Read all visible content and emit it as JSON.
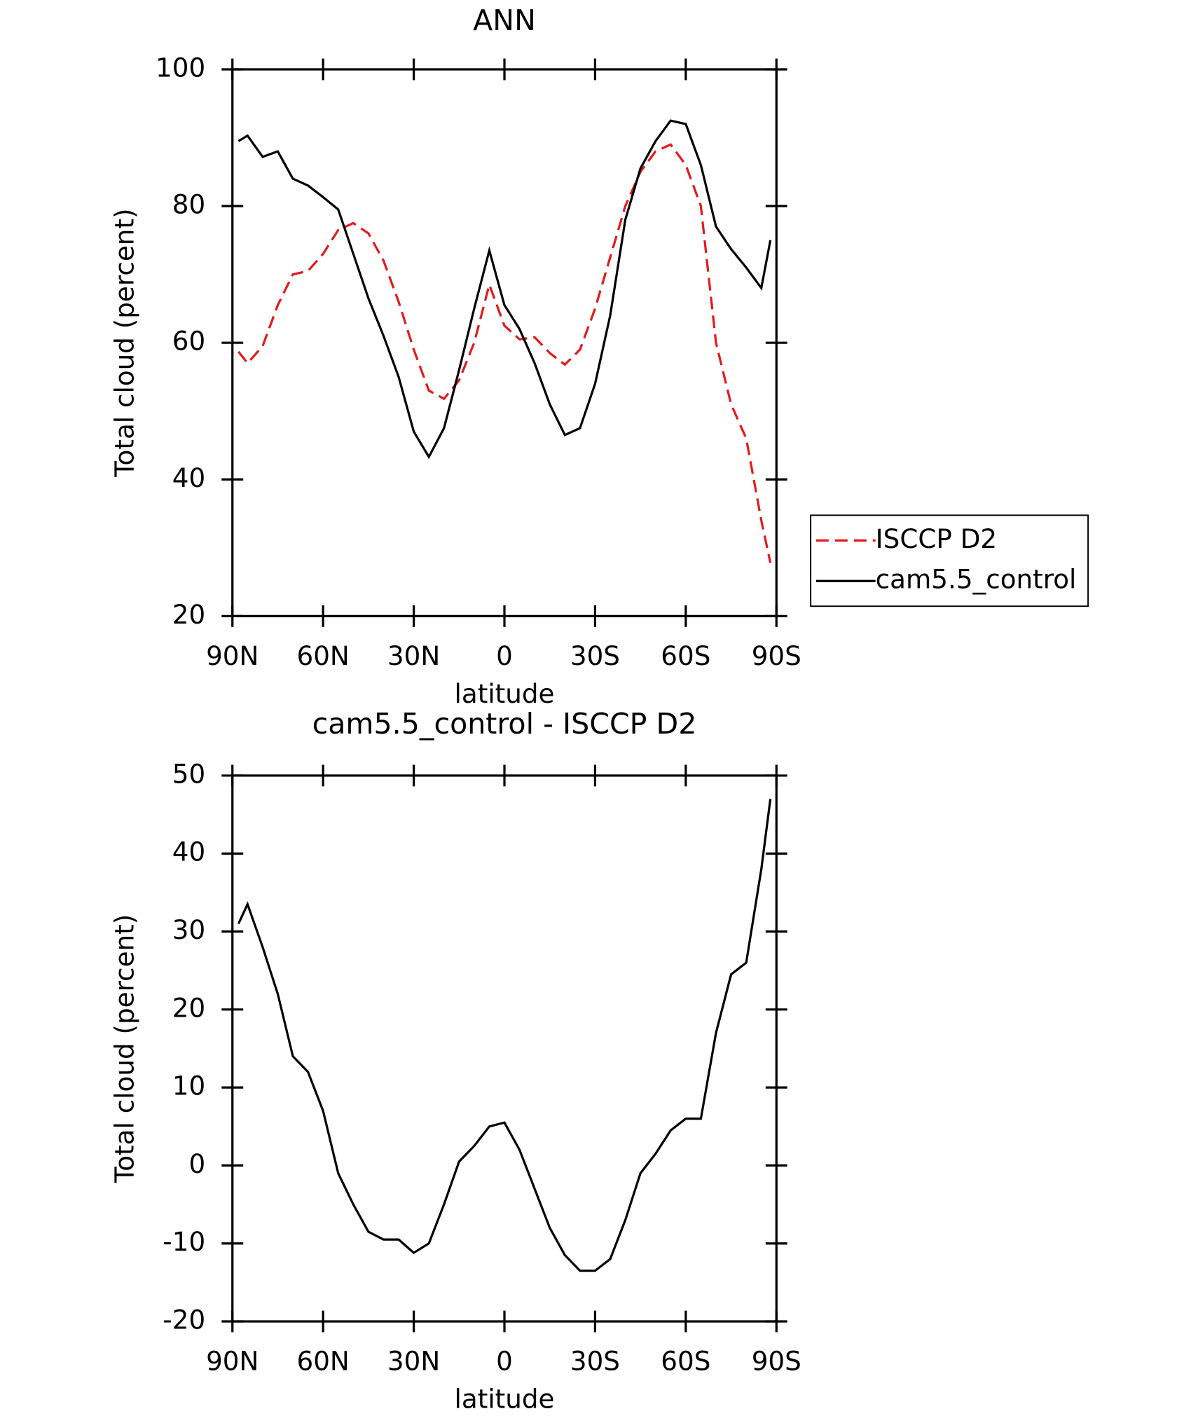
{
  "chart_data": [
    {
      "type": "line",
      "title": "ANN",
      "xlabel": "latitude",
      "ylabel": "Total cloud (percent)",
      "x": [
        88,
        85,
        80,
        75,
        70,
        65,
        60,
        55,
        50,
        45,
        40,
        35,
        30,
        25,
        20,
        15,
        10,
        5,
        0,
        -5,
        -10,
        -15,
        -20,
        -25,
        -30,
        -35,
        -40,
        -45,
        -50,
        -55,
        -60,
        -65,
        -70,
        -75,
        -80,
        -85,
        -88
      ],
      "series": [
        {
          "name": "ISCCP D2",
          "color": "#e41a1c",
          "dash": true,
          "values": [
            58.7,
            57,
            59.5,
            65.5,
            70,
            70.5,
            73,
            76.5,
            77.5,
            76,
            72,
            66,
            59,
            53,
            51.8,
            54.5,
            60,
            68.5,
            62.5,
            60.5,
            60.8,
            58.5,
            56.8,
            59,
            65,
            72.5,
            80,
            85,
            88,
            89,
            86,
            80,
            60,
            51,
            46,
            34,
            27.8
          ]
        },
        {
          "name": "cam5.5_control",
          "color": "#000000",
          "dash": false,
          "values": [
            89.5,
            90.3,
            87.2,
            88,
            84,
            83,
            81.3,
            79.5,
            73,
            66.5,
            61,
            55,
            47,
            43.3,
            47.5,
            56,
            65,
            73.5,
            65.5,
            62,
            57,
            51,
            46.5,
            47.5,
            54,
            64,
            78,
            85.5,
            89.5,
            92.5,
            92,
            86,
            77,
            73.7,
            71,
            68,
            75
          ]
        }
      ],
      "xlim": [
        90,
        -90
      ],
      "xticks": [
        {
          "value": 90,
          "label": "90N"
        },
        {
          "value": 60,
          "label": "60N"
        },
        {
          "value": 30,
          "label": "30N"
        },
        0,
        {
          "value": -30,
          "label": "30S"
        },
        {
          "value": -60,
          "label": "60S"
        },
        {
          "value": -90,
          "label": "90S"
        }
      ],
      "ylim": [
        20,
        100
      ],
      "yticks": [
        20,
        40,
        60,
        80,
        100
      ],
      "legend": "right"
    },
    {
      "type": "line",
      "title": "cam5.5_control - ISCCP D2",
      "xlabel": "latitude",
      "ylabel": "Total cloud (percent)",
      "x": [
        88,
        85,
        80,
        75,
        70,
        65,
        60,
        55,
        50,
        45,
        40,
        35,
        30,
        25,
        20,
        15,
        10,
        5,
        0,
        -5,
        -10,
        -15,
        -20,
        -25,
        -30,
        -35,
        -40,
        -45,
        -50,
        -55,
        -60,
        -65,
        -70,
        -75,
        -80,
        -85,
        -88
      ],
      "series": [
        {
          "color": "#000000",
          "values": [
            31,
            33.5,
            28,
            22,
            14,
            12,
            7,
            -1,
            -5,
            -8.5,
            -9.5,
            -9.5,
            -11.2,
            -10,
            -5,
            0.5,
            2.5,
            5,
            5.5,
            2,
            -3,
            -8,
            -11.5,
            -13.5,
            -13.5,
            -12,
            -7,
            -1,
            1.5,
            4.5,
            6,
            6,
            17,
            24.5,
            26,
            38,
            47
          ]
        }
      ],
      "xlim": [
        90,
        -90
      ],
      "xticks": [
        {
          "value": 90,
          "label": "90N"
        },
        {
          "value": 60,
          "label": "60N"
        },
        {
          "value": 30,
          "label": "30N"
        },
        0,
        {
          "value": -30,
          "label": "30S"
        },
        {
          "value": -60,
          "label": "60S"
        },
        {
          "value": -90,
          "label": "90S"
        }
      ],
      "ylim": [
        -20,
        50
      ],
      "yticks": [
        -20,
        -10,
        0,
        10,
        20,
        30,
        40,
        50
      ]
    }
  ]
}
